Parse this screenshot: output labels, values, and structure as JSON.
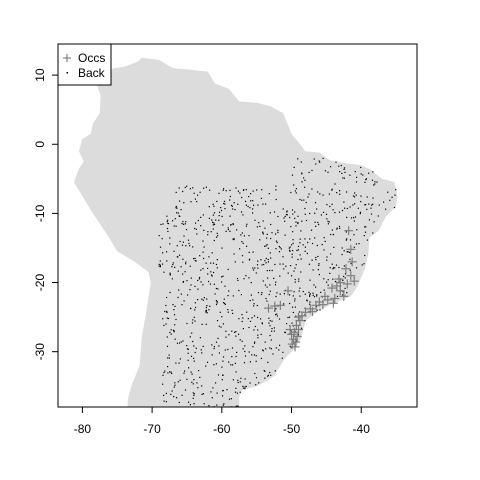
{
  "chart_data": {
    "type": "scatter",
    "xlim": [
      -83.5,
      -32
    ],
    "ylim": [
      -38,
      14.5
    ],
    "x_ticks": [
      -80,
      -70,
      -60,
      -50,
      -40
    ],
    "x_tick_labels": [
      "-80",
      "-70",
      "-60",
      "-50",
      "-40"
    ],
    "y_ticks": [
      10,
      0,
      -10,
      -20,
      -30
    ],
    "y_tick_labels": [
      "10",
      "0",
      "-10",
      "-20",
      "-30"
    ],
    "legend": {
      "position": "top-left",
      "entries": [
        {
          "label": "Occs",
          "marker": "+"
        },
        {
          "label": "Back",
          "marker": "."
        }
      ]
    },
    "colors": {
      "land": "#dcdcdc",
      "occs": "#7f7f7f",
      "back": "#000000",
      "frame": "#000000"
    },
    "map_outline": [
      [
        -78,
        9
      ],
      [
        -77,
        10
      ],
      [
        -75.5,
        11
      ],
      [
        -74,
        11.2
      ],
      [
        -72,
        12
      ],
      [
        -71.5,
        12.5
      ],
      [
        -69,
        12.2
      ],
      [
        -67,
        11
      ],
      [
        -64.5,
        10.8
      ],
      [
        -62,
        10.5
      ],
      [
        -61,
        8.8
      ],
      [
        -59,
        8
      ],
      [
        -57.5,
        6.2
      ],
      [
        -55,
        6
      ],
      [
        -53,
        5.5
      ],
      [
        -51.2,
        4.5
      ],
      [
        -50,
        1.5
      ],
      [
        -49,
        0.3
      ],
      [
        -48,
        -1
      ],
      [
        -46,
        -1.2
      ],
      [
        -44.5,
        -2.3
      ],
      [
        -42,
        -2.8
      ],
      [
        -40,
        -3
      ],
      [
        -38.5,
        -3.8
      ],
      [
        -37,
        -5
      ],
      [
        -35.2,
        -5.5
      ],
      [
        -34.8,
        -7.5
      ],
      [
        -35,
        -9
      ],
      [
        -36.5,
        -10.5
      ],
      [
        -37.5,
        -12.5
      ],
      [
        -38.8,
        -13.5
      ],
      [
        -39,
        -16
      ],
      [
        -39.5,
        -18
      ],
      [
        -40.5,
        -20.5
      ],
      [
        -41.5,
        -22
      ],
      [
        -44,
        -23
      ],
      [
        -46,
        -24
      ],
      [
        -48,
        -25.5
      ],
      [
        -48.6,
        -28
      ],
      [
        -49.5,
        -29.5
      ],
      [
        -51,
        -31
      ],
      [
        -52.5,
        -33.5
      ],
      [
        -53.5,
        -34.2
      ],
      [
        -55,
        -35
      ],
      [
        -57,
        -35.5
      ],
      [
        -57.5,
        -36.5
      ],
      [
        -57.5,
        -38
      ],
      [
        -73.5,
        -38
      ],
      [
        -73.5,
        -37
      ],
      [
        -73,
        -35
      ],
      [
        -71.8,
        -32
      ],
      [
        -71.5,
        -28
      ],
      [
        -70.8,
        -24
      ],
      [
        -70.2,
        -20
      ],
      [
        -70.5,
        -18.5
      ],
      [
        -72.5,
        -17
      ],
      [
        -75,
        -15.5
      ],
      [
        -76.5,
        -13
      ],
      [
        -78.5,
        -10
      ],
      [
        -80,
        -7.5
      ],
      [
        -81.2,
        -5.5
      ],
      [
        -80.5,
        -3.5
      ],
      [
        -79.8,
        -2.5
      ],
      [
        -80.5,
        -1
      ],
      [
        -80,
        0.8
      ],
      [
        -78.8,
        1.5
      ],
      [
        -78.5,
        3
      ],
      [
        -77.5,
        4.5
      ],
      [
        -77.4,
        7
      ],
      [
        -78,
        9
      ]
    ],
    "occurrences": [
      {
        "x": -41.8,
        "y": -12.5
      },
      {
        "x": -41.5,
        "y": -15.2
      },
      {
        "x": -41.3,
        "y": -17.0
      },
      {
        "x": -42.2,
        "y": -18.0
      },
      {
        "x": -41.5,
        "y": -19.0
      },
      {
        "x": -41.0,
        "y": -19.8
      },
      {
        "x": -42.0,
        "y": -20.2
      },
      {
        "x": -43.2,
        "y": -19.5
      },
      {
        "x": -43.5,
        "y": -20.5
      },
      {
        "x": -44.2,
        "y": -20.8
      },
      {
        "x": -43.0,
        "y": -21.2
      },
      {
        "x": -42.5,
        "y": -22.0
      },
      {
        "x": -43.8,
        "y": -22.3
      },
      {
        "x": -44.8,
        "y": -22.5
      },
      {
        "x": -45.2,
        "y": -22.0
      },
      {
        "x": -46.0,
        "y": -22.8
      },
      {
        "x": -46.5,
        "y": -23.3
      },
      {
        "x": -47.3,
        "y": -23.8
      },
      {
        "x": -48.0,
        "y": -24.3
      },
      {
        "x": -48.5,
        "y": -24.8
      },
      {
        "x": -48.8,
        "y": -25.5
      },
      {
        "x": -49.3,
        "y": -26.2
      },
      {
        "x": -49.0,
        "y": -26.8
      },
      {
        "x": -49.6,
        "y": -27.2
      },
      {
        "x": -50.0,
        "y": -27.5
      },
      {
        "x": -49.2,
        "y": -27.8
      },
      {
        "x": -49.7,
        "y": -28.2
      },
      {
        "x": -49.4,
        "y": -28.6
      },
      {
        "x": -49.9,
        "y": -28.9
      },
      {
        "x": -49.5,
        "y": -29.3
      },
      {
        "x": -50.5,
        "y": -21.2
      },
      {
        "x": -51.6,
        "y": -23.3
      },
      {
        "x": -52.4,
        "y": -23.4
      },
      {
        "x": -53.3,
        "y": -23.7
      },
      {
        "x": -44.0,
        "y": -23.0
      },
      {
        "x": -45.5,
        "y": -23.2
      },
      {
        "x": -47.0,
        "y": -24.2
      },
      {
        "x": -43.0,
        "y": -20.0
      },
      {
        "x": -50.2,
        "y": -26.8
      },
      {
        "x": -49.0,
        "y": -25.0
      }
    ],
    "background_points": {
      "count": 1000,
      "region": "random background points over the land area east of the Andes (approx. 6°S to 38°S)",
      "lon_range": [
        -71,
        -35
      ],
      "lat_range": [
        -38,
        -2
      ]
    }
  }
}
